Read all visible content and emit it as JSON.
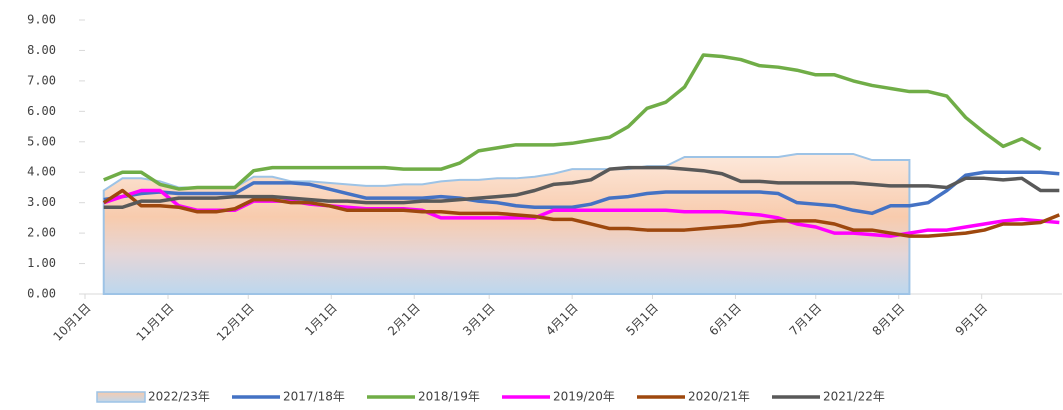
{
  "chart_data": {
    "type": "line",
    "xlim": [
      0,
      365
    ],
    "ylim": [
      0,
      9
    ],
    "yticks": [
      {
        "value": 0,
        "label": "0.00"
      },
      {
        "value": 1,
        "label": "1.00"
      },
      {
        "value": 2,
        "label": "2.00"
      },
      {
        "value": 3,
        "label": "3.00"
      },
      {
        "value": 4,
        "label": "4.00"
      },
      {
        "value": 5,
        "label": "5.00"
      },
      {
        "value": 6,
        "label": "6.00"
      },
      {
        "value": 7,
        "label": "7.00"
      },
      {
        "value": 8,
        "label": "8.00"
      },
      {
        "value": 9,
        "label": "9.00"
      }
    ],
    "xticks": [
      {
        "value": 0,
        "label": "10月1日"
      },
      {
        "value": 31,
        "label": "11月1日"
      },
      {
        "value": 61,
        "label": "12月1日"
      },
      {
        "value": 92,
        "label": "1月1日"
      },
      {
        "value": 123,
        "label": "2月1日"
      },
      {
        "value": 151,
        "label": "3月1日"
      },
      {
        "value": 182,
        "label": "4月1日"
      },
      {
        "value": 212,
        "label": "5月1日"
      },
      {
        "value": 243,
        "label": "6月1日"
      },
      {
        "value": 273,
        "label": "7月1日"
      },
      {
        "value": 304,
        "label": "8月1日"
      },
      {
        "value": 335,
        "label": "9月1日"
      }
    ],
    "grid": false,
    "legend": "bottom",
    "x": [
      0,
      7,
      14,
      21,
      28,
      35,
      42,
      49,
      56,
      63,
      70,
      77,
      84,
      91,
      98,
      105,
      112,
      119,
      126,
      133,
      140,
      147,
      154,
      161,
      168,
      175,
      182,
      189,
      196,
      203,
      210,
      217,
      224,
      231,
      238,
      245,
      252,
      259,
      266,
      273,
      280,
      287,
      294,
      301,
      308,
      315,
      322,
      329,
      336,
      343,
      350,
      357,
      364
    ],
    "series": [
      {
        "name": "2022/23年",
        "type": "area",
        "color": "#9dc3e6",
        "values": [
          null,
          3.4,
          3.8,
          3.8,
          3.7,
          3.5,
          3.5,
          3.5,
          3.5,
          3.85,
          3.85,
          3.7,
          3.7,
          3.65,
          3.6,
          3.55,
          3.55,
          3.6,
          3.6,
          3.7,
          3.75,
          3.75,
          3.8,
          3.8,
          3.85,
          3.95,
          4.1,
          4.1,
          4.1,
          4.1,
          4.2,
          4.2,
          4.5,
          4.5,
          4.5,
          4.5,
          4.5,
          4.5,
          4.6,
          4.6,
          4.6,
          4.6,
          4.4,
          4.4,
          4.4,
          null,
          null,
          null,
          null,
          null,
          null,
          null,
          null
        ]
      },
      {
        "name": "2017/18年",
        "type": "line",
        "color": "#4472c4",
        "values": [
          null,
          3.1,
          3.2,
          3.3,
          3.35,
          3.3,
          3.3,
          3.3,
          3.3,
          3.65,
          3.65,
          3.65,
          3.6,
          3.45,
          3.3,
          3.15,
          3.15,
          3.15,
          3.15,
          3.2,
          3.15,
          3.05,
          3.0,
          2.9,
          2.85,
          2.85,
          2.85,
          2.95,
          3.15,
          3.2,
          3.3,
          3.35,
          3.35,
          3.35,
          3.35,
          3.35,
          3.35,
          3.3,
          3.0,
          2.95,
          2.9,
          2.75,
          2.65,
          2.9,
          2.9,
          3.0,
          3.4,
          3.9,
          4.0,
          4.0,
          4.0,
          4.0,
          3.95
        ]
      },
      {
        "name": "2018/19年",
        "type": "line",
        "color": "#70ad47",
        "values": [
          null,
          3.75,
          4.0,
          4.0,
          3.6,
          3.45,
          3.5,
          3.5,
          3.5,
          4.05,
          4.15,
          4.15,
          4.15,
          4.15,
          4.15,
          4.15,
          4.15,
          4.1,
          4.1,
          4.1,
          4.3,
          4.7,
          4.8,
          4.9,
          4.9,
          4.9,
          4.95,
          5.05,
          5.15,
          5.5,
          6.1,
          6.3,
          6.8,
          7.85,
          7.8,
          7.7,
          7.5,
          7.45,
          7.35,
          7.2,
          7.2,
          7.0,
          6.85,
          6.75,
          6.65,
          6.65,
          6.5,
          5.8,
          5.3,
          4.85,
          5.1,
          4.75,
          null
        ]
      },
      {
        "name": "2019/20年",
        "type": "line",
        "color": "#ff00ff",
        "values": [
          null,
          3.0,
          3.2,
          3.4,
          3.4,
          2.9,
          2.75,
          2.75,
          2.75,
          3.05,
          3.05,
          3.05,
          2.95,
          2.9,
          2.85,
          2.8,
          2.8,
          2.8,
          2.75,
          2.5,
          2.5,
          2.5,
          2.5,
          2.5,
          2.5,
          2.75,
          2.75,
          2.75,
          2.75,
          2.75,
          2.75,
          2.75,
          2.7,
          2.7,
          2.7,
          2.65,
          2.6,
          2.5,
          2.3,
          2.2,
          2.0,
          2.0,
          1.95,
          1.9,
          2.0,
          2.1,
          2.1,
          2.2,
          2.3,
          2.4,
          2.45,
          2.4,
          2.35
        ]
      },
      {
        "name": "2020/21年",
        "type": "line",
        "color": "#9e480e",
        "values": [
          null,
          3.0,
          3.4,
          2.9,
          2.9,
          2.85,
          2.7,
          2.7,
          2.8,
          3.1,
          3.1,
          3.0,
          3.0,
          2.9,
          2.75,
          2.75,
          2.75,
          2.75,
          2.7,
          2.7,
          2.65,
          2.65,
          2.65,
          2.6,
          2.55,
          2.45,
          2.45,
          2.3,
          2.15,
          2.15,
          2.1,
          2.1,
          2.1,
          2.15,
          2.2,
          2.25,
          2.35,
          2.4,
          2.4,
          2.4,
          2.3,
          2.1,
          2.1,
          2.0,
          1.9,
          1.9,
          1.95,
          2.0,
          2.1,
          2.3,
          2.3,
          2.35,
          2.6
        ]
      },
      {
        "name": "2021/22年",
        "type": "line",
        "color": "#595959",
        "values": [
          null,
          2.85,
          2.85,
          3.05,
          3.05,
          3.15,
          3.15,
          3.15,
          3.2,
          3.2,
          3.2,
          3.15,
          3.1,
          3.05,
          3.05,
          3.0,
          3.0,
          3.0,
          3.05,
          3.05,
          3.1,
          3.15,
          3.2,
          3.25,
          3.4,
          3.6,
          3.65,
          3.75,
          4.1,
          4.15,
          4.15,
          4.15,
          4.1,
          4.05,
          3.95,
          3.7,
          3.7,
          3.65,
          3.65,
          3.65,
          3.65,
          3.65,
          3.6,
          3.55,
          3.55,
          3.55,
          3.5,
          3.8,
          3.8,
          3.75,
          3.8,
          3.4,
          3.4
        ]
      }
    ]
  }
}
